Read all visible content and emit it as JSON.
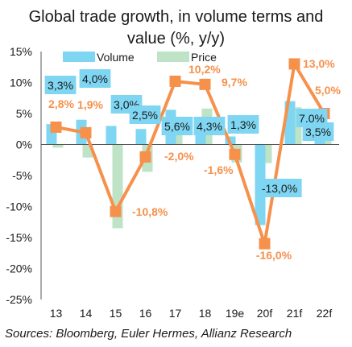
{
  "title_lines": [
    "Global trade growth, in volume terms and",
    "value (%, y/y)"
  ],
  "source": "Sources: Bloomberg, Euler Hermes, Allianz Research",
  "colors": {
    "volume": "#7fd6f2",
    "price": "#bfe3c6",
    "line": "#f6914c",
    "label_text": "#f6914c",
    "axis": "#555555"
  },
  "chart_data": {
    "type": "bar",
    "categories": [
      "13",
      "14",
      "15",
      "16",
      "17",
      "18",
      "19e",
      "20f",
      "21f",
      "22f"
    ],
    "series": [
      {
        "name": "Volume",
        "kind": "bar",
        "values": [
          3.3,
          4.0,
          3.0,
          2.5,
          5.6,
          4.3,
          1.3,
          -13.0,
          7.0,
          3.5
        ],
        "labels": [
          "3,3%",
          "4,0%",
          "3,0%",
          "2,5%",
          "5,6%",
          "4,3%",
          "1,3%",
          "-13,0%",
          "7,0%",
          "3,5%"
        ]
      },
      {
        "name": "Price",
        "kind": "bar",
        "values": [
          -0.5,
          -2.1,
          -13.5,
          -4.4,
          4.4,
          5.8,
          -2.9,
          -3.0,
          6.0,
          1.5
        ],
        "labels": []
      },
      {
        "name": "",
        "kind": "line",
        "values": [
          2.8,
          1.9,
          -10.8,
          -2.0,
          10.2,
          9.7,
          -1.6,
          -16.0,
          13.0,
          5.0
        ],
        "labels": [
          "2,8%",
          "1,9%",
          "-10,8%",
          "-2,0%",
          "10,2%",
          "9,7%",
          "-1,6%",
          "-16,0%",
          "13,0%",
          "5,0%"
        ]
      }
    ],
    "ylim": [
      -25,
      15
    ],
    "yticks": [
      15,
      10,
      5,
      0,
      -5,
      -10,
      -15,
      -20,
      -25
    ],
    "ytick_labels": [
      "15%",
      "10%",
      "5%",
      "0%",
      "-5%",
      "-10%",
      "-15%",
      "-20%",
      "-25%"
    ],
    "legend": [
      "Volume",
      "Price"
    ],
    "legend_position": "top",
    "grid": false
  }
}
